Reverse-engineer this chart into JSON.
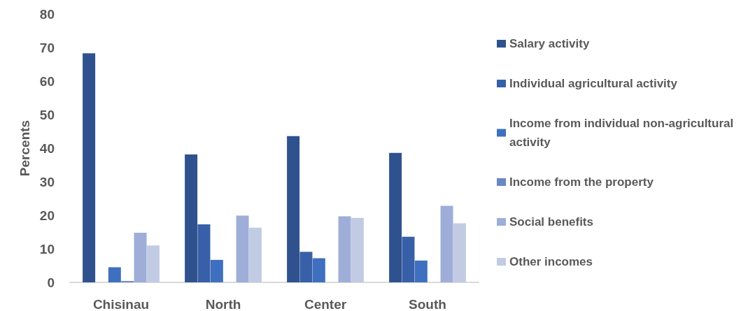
{
  "chart_data": {
    "type": "bar",
    "ylabel": "Percents",
    "categories": [
      "Chisinau",
      "North",
      "Center",
      "South"
    ],
    "series": [
      {
        "name": "Salary activity",
        "color": "#2f528f",
        "values": [
          68.3,
          38.1,
          43.6,
          38.6
        ]
      },
      {
        "name": "Individual agricultural activity",
        "color": "#3860a8",
        "values": [
          0,
          17.3,
          9.1,
          13.6
        ]
      },
      {
        "name": "Income from individual non-agricultural activity",
        "color": "#3f6fbf",
        "values": [
          4.5,
          6.7,
          7.2,
          6.5
        ]
      },
      {
        "name": "Income from the property",
        "color": "#6a87c8",
        "values": [
          0.4,
          0,
          0,
          0
        ]
      },
      {
        "name": "Social benefits",
        "color": "#9eaed9",
        "values": [
          14.8,
          19.9,
          19.7,
          22.8
        ]
      },
      {
        "name": "Other incomes",
        "color": "#c1cbe4",
        "values": [
          11.0,
          16.3,
          19.2,
          17.6
        ]
      }
    ],
    "ylim": [
      0,
      80
    ],
    "yticks": [
      0,
      10,
      20,
      30,
      40,
      50,
      60,
      70,
      80
    ],
    "grid": false,
    "legend": "right"
  }
}
